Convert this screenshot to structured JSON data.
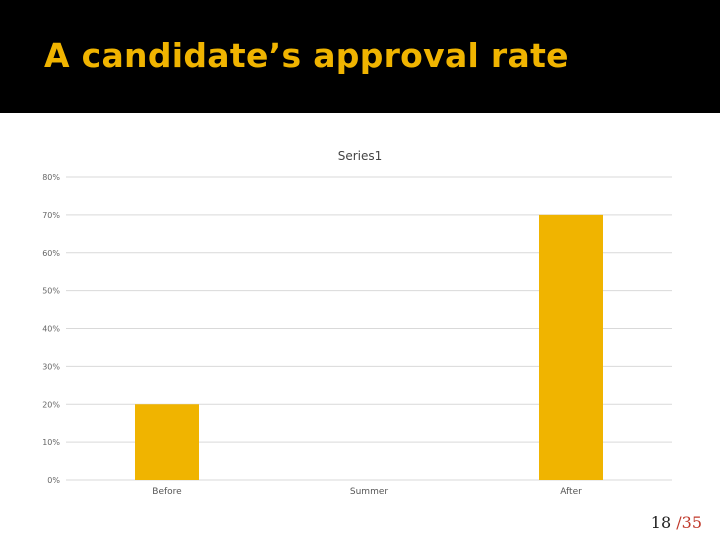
{
  "slide": {
    "title": "A candidate’s approval rate",
    "page_current": "18",
    "page_separator": "/",
    "page_total": "35"
  },
  "colors": {
    "title_band": "#000000",
    "title_text": "#f0b400",
    "bar": "#f0b400",
    "grid": "#d9d9d9",
    "page_total": "#c0392b"
  },
  "chart_data": {
    "type": "bar",
    "title": "Series1",
    "categories": [
      "Before",
      "Summer",
      "After"
    ],
    "series": [
      {
        "name": "Series1",
        "values": [
          20,
          0,
          70
        ]
      }
    ],
    "yticks": [
      "0%",
      "10%",
      "20%",
      "30%",
      "40%",
      "50%",
      "60%",
      "70%",
      "80%"
    ],
    "ylim": [
      0,
      80
    ],
    "grid": true,
    "legend": "none",
    "xlabel": "",
    "ylabel": ""
  }
}
